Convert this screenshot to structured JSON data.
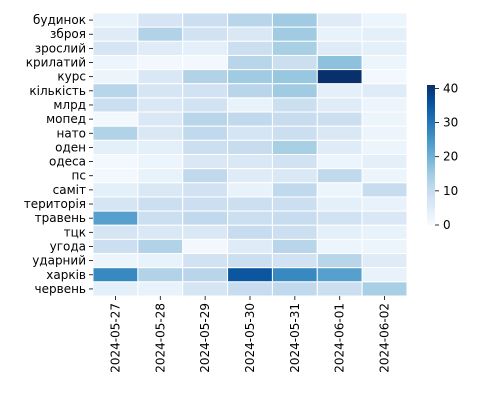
{
  "chart_data": {
    "type": "heatmap",
    "title": "",
    "xlabel": "",
    "ylabel": "",
    "x": [
      "2024-05-27",
      "2024-05-28",
      "2024-05-29",
      "2024-05-30",
      "2024-05-31",
      "2024-06-01",
      "2024-06-02"
    ],
    "y": [
      "будинок",
      "зброя",
      "зрослий",
      "крилатий",
      "курс",
      "кількість",
      "млрд",
      "мопед",
      "нато",
      "оден",
      "одеса",
      "пс",
      "саміт",
      "територія",
      "травень",
      "тцк",
      "угода",
      "ударний",
      "харків",
      "червень"
    ],
    "values": [
      [
        3,
        7,
        9,
        12,
        15,
        5,
        2
      ],
      [
        5,
        13,
        8,
        6,
        15,
        3,
        4
      ],
      [
        7,
        5,
        4,
        9,
        14,
        5,
        4
      ],
      [
        2,
        1,
        1,
        12,
        9,
        17,
        2
      ],
      [
        2,
        6,
        13,
        15,
        16,
        41,
        1
      ],
      [
        12,
        7,
        8,
        12,
        15,
        4,
        5
      ],
      [
        9,
        6,
        8,
        3,
        9,
        5,
        2
      ],
      [
        1,
        6,
        12,
        11,
        10,
        9,
        2
      ],
      [
        13,
        6,
        11,
        7,
        9,
        6,
        2
      ],
      [
        4,
        4,
        9,
        10,
        14,
        5,
        2
      ],
      [
        1,
        2,
        6,
        6,
        8,
        2,
        4
      ],
      [
        1,
        3,
        11,
        5,
        6,
        11,
        2
      ],
      [
        4,
        6,
        8,
        3,
        11,
        2,
        10
      ],
      [
        7,
        9,
        9,
        9,
        9,
        4,
        3
      ],
      [
        23,
        9,
        11,
        9,
        10,
        8,
        6
      ],
      [
        7,
        6,
        6,
        10,
        9,
        4,
        3
      ],
      [
        9,
        13,
        1,
        5,
        12,
        2,
        2
      ],
      [
        2,
        3,
        8,
        9,
        8,
        12,
        5
      ],
      [
        27,
        13,
        12,
        35,
        27,
        23,
        3
      ],
      [
        4,
        3,
        7,
        10,
        11,
        9,
        14
      ]
    ],
    "colorbar": {
      "min": 0,
      "max": 41,
      "ticks": [
        "0",
        "10",
        "20",
        "30",
        "40"
      ],
      "colormap": "Blues",
      "placement": "right"
    },
    "grid": "white cell borders",
    "legend": "none"
  }
}
